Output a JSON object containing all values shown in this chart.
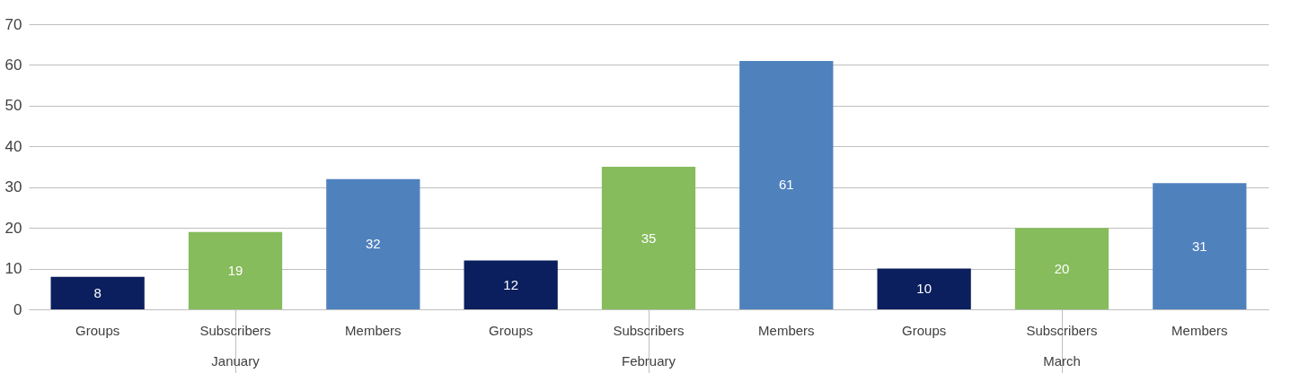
{
  "chart_data": {
    "type": "bar",
    "categories": [
      "January",
      "February",
      "March"
    ],
    "series": [
      {
        "name": "Groups",
        "color": "#0b1f5e",
        "values": [
          8,
          12,
          10
        ]
      },
      {
        "name": "Subscribers",
        "color": "#86bc5c",
        "values": [
          19,
          35,
          20
        ]
      },
      {
        "name": "Members",
        "color": "#4f81bd",
        "values": [
          32,
          61,
          31
        ]
      }
    ],
    "ylim": [
      0,
      70
    ],
    "yticks": [
      0,
      10,
      20,
      30,
      40,
      50,
      60,
      70
    ],
    "grid": "y",
    "data_labels": true
  }
}
